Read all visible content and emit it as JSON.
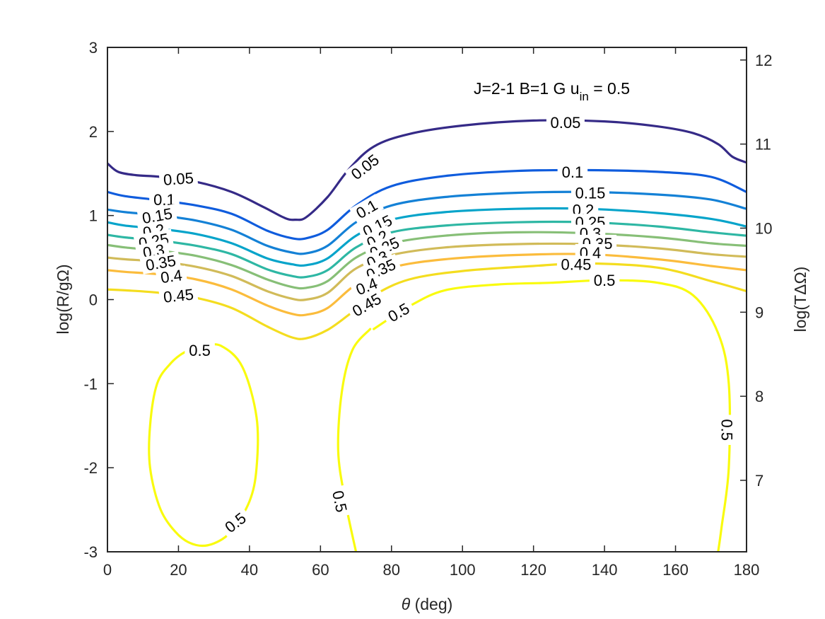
{
  "chart_data": {
    "type": "contour",
    "title": "",
    "annotation": {
      "main": "J=2-1  B=1 G  u",
      "sub": "in",
      "tail": " = 0.5"
    },
    "xlabel": {
      "symbol": "θ",
      "rest": " (deg)"
    },
    "ylabel": "log(R/gΩ)",
    "y2label": "log(TΔΩ)",
    "xlim": [
      0,
      180
    ],
    "ylim": [
      -3,
      3
    ],
    "y2lim": [
      6.15,
      12.15
    ],
    "xticks": [
      0,
      20,
      40,
      60,
      80,
      100,
      120,
      140,
      160,
      180
    ],
    "yticks": [
      -3,
      -2,
      -1,
      0,
      1,
      2,
      3
    ],
    "y2ticks": [
      7,
      8,
      9,
      10,
      11,
      12
    ],
    "contour_levels": [
      {
        "level": "0.05",
        "color": "#352a87",
        "points": [
          [
            0,
            1.62
          ],
          [
            3,
            1.52
          ],
          [
            8,
            1.48
          ],
          [
            15,
            1.46
          ],
          [
            25,
            1.4
          ],
          [
            35,
            1.28
          ],
          [
            44,
            1.1
          ],
          [
            50,
            0.97
          ],
          [
            53,
            0.95
          ],
          [
            56,
            0.98
          ],
          [
            62,
            1.22
          ],
          [
            68,
            1.55
          ],
          [
            75,
            1.82
          ],
          [
            85,
            1.97
          ],
          [
            100,
            2.07
          ],
          [
            120,
            2.13
          ],
          [
            140,
            2.12
          ],
          [
            155,
            2.06
          ],
          [
            165,
            1.98
          ],
          [
            172,
            1.85
          ],
          [
            176,
            1.7
          ],
          [
            180,
            1.63
          ]
        ],
        "labels": [
          {
            "text": "0.05",
            "at": [
              20,
              1.44
            ],
            "angle": -4
          },
          {
            "text": "0.05",
            "at": [
              72.5,
              1.58
            ],
            "angle": -38
          },
          {
            "text": "0.05",
            "at": [
              129,
              2.11
            ],
            "angle": 0
          }
        ]
      },
      {
        "level": "0.1",
        "color": "#0f5cdd",
        "points": [
          [
            0,
            1.28
          ],
          [
            5,
            1.23
          ],
          [
            15,
            1.18
          ],
          [
            25,
            1.12
          ],
          [
            35,
            1.02
          ],
          [
            45,
            0.82
          ],
          [
            52,
            0.73
          ],
          [
            56,
            0.73
          ],
          [
            62,
            0.83
          ],
          [
            70,
            1.12
          ],
          [
            80,
            1.35
          ],
          [
            95,
            1.47
          ],
          [
            115,
            1.53
          ],
          [
            135,
            1.54
          ],
          [
            155,
            1.52
          ],
          [
            170,
            1.46
          ],
          [
            180,
            1.28
          ]
        ],
        "labels": [
          {
            "text": "0.1",
            "at": [
              16,
              1.19
            ],
            "angle": 0
          },
          {
            "text": "0.1",
            "at": [
              73,
              1.08
            ],
            "angle": -30
          },
          {
            "text": "0.1",
            "at": [
              131,
              1.52
            ],
            "angle": 0
          }
        ]
      },
      {
        "level": "0.15",
        "color": "#1481d6",
        "points": [
          [
            0,
            1.07
          ],
          [
            5,
            1.04
          ],
          [
            15,
            1.0
          ],
          [
            25,
            0.94
          ],
          [
            35,
            0.83
          ],
          [
            45,
            0.64
          ],
          [
            52,
            0.56
          ],
          [
            56,
            0.55
          ],
          [
            62,
            0.64
          ],
          [
            70,
            0.92
          ],
          [
            80,
            1.12
          ],
          [
            95,
            1.22
          ],
          [
            115,
            1.27
          ],
          [
            135,
            1.28
          ],
          [
            155,
            1.25
          ],
          [
            170,
            1.19
          ],
          [
            180,
            1.08
          ]
        ],
        "labels": [
          {
            "text": "0.15",
            "at": [
              14,
              1.0
            ],
            "angle": -10
          },
          {
            "text": "0.15",
            "at": [
              76,
              0.88
            ],
            "angle": -26
          },
          {
            "text": "0.15",
            "at": [
              136,
              1.27
            ],
            "angle": 0
          }
        ]
      },
      {
        "level": "0.2",
        "color": "#06a4ca",
        "points": [
          [
            0,
            0.92
          ],
          [
            5,
            0.88
          ],
          [
            15,
            0.84
          ],
          [
            25,
            0.78
          ],
          [
            35,
            0.67
          ],
          [
            45,
            0.49
          ],
          [
            52,
            0.42
          ],
          [
            56,
            0.41
          ],
          [
            62,
            0.49
          ],
          [
            70,
            0.76
          ],
          [
            80,
            0.95
          ],
          [
            95,
            1.04
          ],
          [
            115,
            1.08
          ],
          [
            135,
            1.08
          ],
          [
            155,
            1.03
          ],
          [
            170,
            0.96
          ],
          [
            180,
            0.87
          ]
        ],
        "labels": [
          {
            "text": "0.2",
            "at": [
              13,
              0.82
            ],
            "angle": -10
          },
          {
            "text": "0.2",
            "at": [
              76,
              0.72
            ],
            "angle": -26
          },
          {
            "text": "0.2",
            "at": [
              134,
              1.07
            ],
            "angle": 0
          }
        ]
      },
      {
        "level": "0.25",
        "color": "#2eb7a4",
        "points": [
          [
            0,
            0.77
          ],
          [
            5,
            0.74
          ],
          [
            15,
            0.7
          ],
          [
            25,
            0.64
          ],
          [
            35,
            0.54
          ],
          [
            45,
            0.36
          ],
          [
            52,
            0.28
          ],
          [
            56,
            0.27
          ],
          [
            62,
            0.35
          ],
          [
            70,
            0.62
          ],
          [
            80,
            0.8
          ],
          [
            95,
            0.88
          ],
          [
            115,
            0.92
          ],
          [
            135,
            0.92
          ],
          [
            155,
            0.87
          ],
          [
            170,
            0.8
          ],
          [
            180,
            0.76
          ]
        ],
        "labels": [
          {
            "text": "0.25",
            "at": [
              13,
              0.7
            ],
            "angle": -10
          },
          {
            "text": "0.25",
            "at": [
              78,
              0.62
            ],
            "angle": -24
          },
          {
            "text": "0.25",
            "at": [
              136,
              0.92
            ],
            "angle": 0
          }
        ]
      },
      {
        "level": "0.3",
        "color": "#87bf77",
        "points": [
          [
            0,
            0.65
          ],
          [
            5,
            0.62
          ],
          [
            15,
            0.58
          ],
          [
            25,
            0.52
          ],
          [
            35,
            0.41
          ],
          [
            45,
            0.24
          ],
          [
            52,
            0.15
          ],
          [
            56,
            0.14
          ],
          [
            62,
            0.22
          ],
          [
            70,
            0.5
          ],
          [
            80,
            0.67
          ],
          [
            95,
            0.76
          ],
          [
            115,
            0.8
          ],
          [
            135,
            0.79
          ],
          [
            155,
            0.74
          ],
          [
            170,
            0.67
          ],
          [
            180,
            0.64
          ]
        ],
        "labels": [
          {
            "text": "0.3",
            "at": [
              13,
              0.58
            ],
            "angle": -10
          },
          {
            "text": "0.3",
            "at": [
              76,
              0.48
            ],
            "angle": -24
          },
          {
            "text": "0.3",
            "at": [
              136,
              0.79
            ],
            "angle": 0
          }
        ]
      },
      {
        "level": "0.35",
        "color": "#d1bb59",
        "points": [
          [
            0,
            0.5
          ],
          [
            5,
            0.48
          ],
          [
            15,
            0.45
          ],
          [
            25,
            0.39
          ],
          [
            35,
            0.28
          ],
          [
            45,
            0.1
          ],
          [
            52,
            0.01
          ],
          [
            56,
            0.0
          ],
          [
            62,
            0.08
          ],
          [
            70,
            0.37
          ],
          [
            80,
            0.53
          ],
          [
            95,
            0.62
          ],
          [
            115,
            0.66
          ],
          [
            135,
            0.66
          ],
          [
            155,
            0.61
          ],
          [
            170,
            0.54
          ],
          [
            180,
            0.51
          ]
        ],
        "labels": [
          {
            "text": "0.35",
            "at": [
              15,
              0.44
            ],
            "angle": -10
          },
          {
            "text": "0.35",
            "at": [
              77,
              0.36
            ],
            "angle": -24
          },
          {
            "text": "0.35",
            "at": [
              138,
              0.67
            ],
            "angle": 0
          }
        ]
      },
      {
        "level": "0.4",
        "color": "#fbbc3c",
        "points": [
          [
            0,
            0.35
          ],
          [
            5,
            0.33
          ],
          [
            15,
            0.3
          ],
          [
            25,
            0.24
          ],
          [
            35,
            0.12
          ],
          [
            45,
            -0.07
          ],
          [
            52,
            -0.17
          ],
          [
            56,
            -0.18
          ],
          [
            62,
            -0.1
          ],
          [
            70,
            0.18
          ],
          [
            80,
            0.38
          ],
          [
            95,
            0.48
          ],
          [
            115,
            0.53
          ],
          [
            135,
            0.54
          ],
          [
            155,
            0.48
          ],
          [
            170,
            0.4
          ],
          [
            180,
            0.35
          ]
        ],
        "labels": [
          {
            "text": "0.4",
            "at": [
              18,
              0.28
            ],
            "angle": -8
          },
          {
            "text": "0.4",
            "at": [
              73,
              0.16
            ],
            "angle": -22
          },
          {
            "text": "0.4",
            "at": [
              136,
              0.56
            ],
            "angle": 0
          }
        ]
      },
      {
        "level": "0.45",
        "color": "#f4dd1f",
        "points": [
          [
            0,
            0.12
          ],
          [
            5,
            0.11
          ],
          [
            15,
            0.08
          ],
          [
            25,
            0.02
          ],
          [
            35,
            -0.1
          ],
          [
            45,
            -0.32
          ],
          [
            52,
            -0.45
          ],
          [
            56,
            -0.46
          ],
          [
            62,
            -0.36
          ],
          [
            68,
            -0.18
          ],
          [
            75,
            0.05
          ],
          [
            85,
            0.24
          ],
          [
            100,
            0.34
          ],
          [
            120,
            0.4
          ],
          [
            135,
            0.43
          ],
          [
            155,
            0.38
          ],
          [
            170,
            0.22
          ],
          [
            180,
            0.1
          ]
        ],
        "labels": [
          {
            "text": "0.45",
            "at": [
              20,
              0.05
            ],
            "angle": -6
          },
          {
            "text": "0.45",
            "at": [
              73,
              -0.06
            ],
            "angle": -30
          },
          {
            "text": "0.45",
            "at": [
              132,
              0.42
            ],
            "angle": 0
          }
        ]
      },
      {
        "level": "0.5",
        "color": "#f9fb0e",
        "points": [
          [
            75,
            -0.35
          ],
          [
            85,
            -0.08
          ],
          [
            95,
            0.11
          ],
          [
            110,
            0.18
          ],
          [
            125,
            0.2
          ],
          [
            140,
            0.23
          ],
          [
            155,
            0.2
          ],
          [
            165,
            0.05
          ],
          [
            172,
            -0.4
          ],
          [
            175,
            -1.0
          ],
          [
            175,
            -2.0
          ],
          [
            173,
            -2.7
          ],
          [
            172,
            -3.0
          ]
        ],
        "labels": [
          {
            "text": "0.5",
            "at": [
              82,
              -0.15
            ],
            "angle": -30
          },
          {
            "text": "0.5",
            "at": [
              140,
              0.23
            ],
            "angle": 0
          },
          {
            "text": "0.5",
            "at": [
              174.5,
              -1.55
            ],
            "angle": 90
          }
        ]
      },
      {
        "level": "0.5",
        "color": "#f9fb0e",
        "points": [
          [
            70,
            -3.0
          ],
          [
            67,
            -2.4
          ],
          [
            65,
            -1.8
          ],
          [
            66,
            -1.1
          ],
          [
            69,
            -0.6
          ],
          [
            74,
            -0.35
          ]
        ],
        "labels": [
          {
            "text": "0.5",
            "at": [
              65.5,
              -2.4
            ],
            "angle": 78
          }
        ]
      },
      {
        "level": "0.5",
        "color": "#f9fb0e",
        "points": [
          [
            27,
            -0.55
          ],
          [
            32,
            -0.55
          ],
          [
            38,
            -0.8
          ],
          [
            42,
            -1.4
          ],
          [
            42,
            -2.0
          ],
          [
            40,
            -2.4
          ],
          [
            35,
            -2.75
          ],
          [
            30,
            -2.9
          ],
          [
            25,
            -2.92
          ],
          [
            20,
            -2.8
          ],
          [
            15,
            -2.5
          ],
          [
            12,
            -2.0
          ],
          [
            12,
            -1.5
          ],
          [
            14,
            -1.0
          ],
          [
            18,
            -0.75
          ],
          [
            22,
            -0.62
          ],
          [
            27,
            -0.55
          ]
        ],
        "labels": [
          {
            "text": "0.5",
            "at": [
              26,
              -0.6
            ],
            "angle": 0
          },
          {
            "text": "0.5",
            "at": [
              36,
              -2.65
            ],
            "angle": -38
          }
        ]
      }
    ]
  }
}
